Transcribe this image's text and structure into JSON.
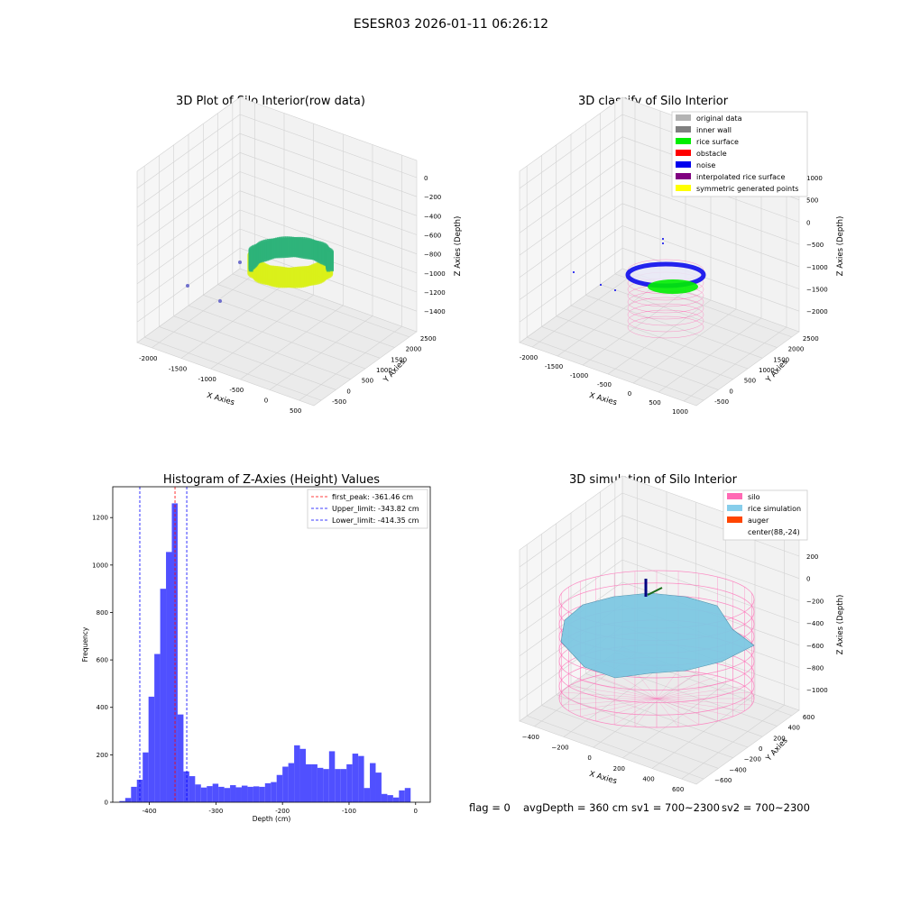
{
  "page": {
    "title": "ESESR03 2026-01-11 06:26:12",
    "status": {
      "flag": "flag = 0",
      "avg_depth": "avgDepth = 360 cm",
      "sv1": "sv1 = 700~2300",
      "sv2": "sv2 = 700~2300"
    }
  },
  "chart_data": [
    {
      "type": "scatter",
      "title": "3D Plot of Silo Interior(row data)",
      "xlabel": "X Axies",
      "ylabel": "Y Axies",
      "zlabel": "Z Axies (Depth)",
      "x_ticks": [
        "-2000",
        "-1500",
        "-1000",
        "-500",
        "0",
        "500"
      ],
      "y_ticks": [
        "-500",
        "0",
        "500",
        "1000",
        "1500",
        "2000",
        "2500"
      ],
      "z_ticks": [
        "0",
        "−200",
        "−400",
        "−600",
        "−800",
        "−1000",
        "−1200",
        "−1400"
      ],
      "colors": {
        "points_low": "#2db37a",
        "points_high": "#d9f01a",
        "outliers": "#6f6fcc"
      }
    },
    {
      "type": "scatter",
      "title": "3D classify of Silo Interior",
      "xlabel": "X Axies",
      "ylabel": "Y Axies",
      "zlabel": "Z Axies (Depth)",
      "x_ticks": [
        "-2000",
        "-1500",
        "-1000",
        "-500",
        "0",
        "500",
        "1000"
      ],
      "y_ticks": [
        "-500",
        "0",
        "500",
        "1000",
        "1500",
        "2000",
        "2500"
      ],
      "z_ticks": [
        "1000",
        "500",
        "0",
        "−500",
        "−1000",
        "−1500",
        "−2000"
      ],
      "legend": [
        {
          "label": "original data",
          "color": "#b3b3b3"
        },
        {
          "label": "inner wall",
          "color": "#808080"
        },
        {
          "label": "rice surface",
          "color": "#00ee00"
        },
        {
          "label": "obstacle",
          "color": "#ff0000"
        },
        {
          "label": "noise",
          "color": "#0000ee"
        },
        {
          "label": "interpolated rice surface",
          "color": "#800080"
        },
        {
          "label": "symmetric generated points",
          "color": "#ffff00"
        }
      ],
      "legend_position": "top-right"
    },
    {
      "type": "bar",
      "title": "Histogram of Z-Axies (Height) Values",
      "xlabel": "Depth (cm)",
      "ylabel": "Frequency",
      "xlim": [
        -455,
        22
      ],
      "ylim": [
        0,
        1330
      ],
      "x_ticks": [
        -400,
        -300,
        -200,
        -100,
        0
      ],
      "y_ticks": [
        0,
        200,
        400,
        600,
        800,
        1000,
        1200
      ],
      "bin_width": 8.75,
      "bin_starts": [
        -445,
        -436.25,
        -427.5,
        -418.75,
        -410,
        -401.25,
        -392.5,
        -383.75,
        -375,
        -366.25,
        -357.5,
        -348.75,
        -340,
        -331.25,
        -322.5,
        -313.75,
        -305,
        -296.25,
        -287.5,
        -278.75,
        -270,
        -261.25,
        -252.5,
        -243.75,
        -235,
        -226.25,
        -217.5,
        -208.75,
        -200,
        -191.25,
        -182.5,
        -173.75,
        -165,
        -156.25,
        -147.5,
        -138.75,
        -130,
        -121.25,
        -112.5,
        -103.75,
        -95,
        -86.25,
        -77.5,
        -68.75,
        -60,
        -51.25,
        -42.5,
        -33.75,
        -25,
        -16.25,
        -7.5
      ],
      "values": [
        5,
        18,
        65,
        95,
        210,
        445,
        625,
        900,
        1055,
        1260,
        370,
        130,
        110,
        75,
        62,
        68,
        78,
        65,
        60,
        72,
        63,
        70,
        65,
        67,
        65,
        80,
        85,
        115,
        150,
        165,
        240,
        225,
        160,
        160,
        145,
        140,
        215,
        140,
        140,
        160,
        205,
        195,
        60,
        165,
        125,
        35,
        30,
        20,
        50,
        60,
        0
      ],
      "bar_color": "#4747ff",
      "lines": [
        {
          "label": "first_peak: -361.46 cm",
          "x": -361.46,
          "color": "#ff0000"
        },
        {
          "label": "Upper_limit: -343.82 cm",
          "x": -343.82,
          "color": "#0000ff"
        },
        {
          "label": "Lower_limit: -414.35 cm",
          "x": -414.35,
          "color": "#0000ff"
        }
      ],
      "legend_position": "top-right"
    },
    {
      "type": "scatter",
      "title": "3D simulation of Silo Interior",
      "xlabel": "X Axies",
      "ylabel": "Y Axies",
      "zlabel": "Z Axies (Depth)",
      "x_ticks": [
        "−400",
        "−200",
        "0",
        "200",
        "400",
        "600"
      ],
      "y_ticks": [
        "−600",
        "−400",
        "−200",
        "0",
        "200",
        "400",
        "600"
      ],
      "z_ticks": [
        "200",
        "0",
        "−200",
        "−400",
        "−600",
        "−800",
        "−1000"
      ],
      "legend": [
        {
          "label": "silo",
          "color": "#ff69b4"
        },
        {
          "label": "rice simulation",
          "color": "#87ceeb"
        },
        {
          "label": "auger",
          "color": "#ff4500"
        },
        {
          "label": "center(88,-24)",
          "color": ""
        }
      ],
      "legend_position": "top-right"
    }
  ]
}
